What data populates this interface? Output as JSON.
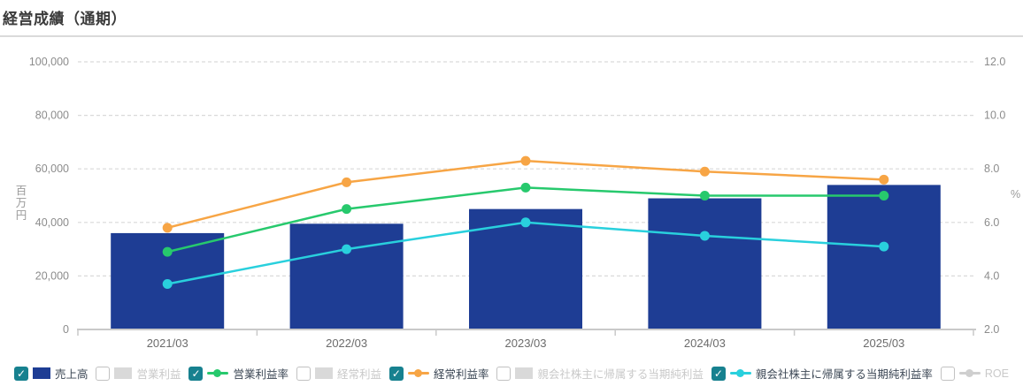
{
  "page": {
    "title": "経営成績（通期）"
  },
  "chart_data": {
    "type": "combo-bar-line",
    "categories": [
      "2021/03",
      "2022/03",
      "2023/03",
      "2024/03",
      "2025/03"
    ],
    "left_axis": {
      "unit": "百万円",
      "min": 0,
      "max": 100000,
      "ticks": [
        "0",
        "20,000",
        "40,000",
        "60,000",
        "80,000",
        "100,000"
      ]
    },
    "right_axis": {
      "unit": "%",
      "min": 2.0,
      "max": 12.0,
      "ticks": [
        "2.0",
        "4.0",
        "6.0",
        "8.0",
        "10.0",
        "12.0"
      ]
    },
    "grid": "dashed-horizontal",
    "series": [
      {
        "name": "売上高",
        "type": "bar",
        "axis": "left",
        "color": "#1e3d94",
        "values": [
          36000,
          39500,
          45000,
          49000,
          54000
        ]
      },
      {
        "name": "営業利益率",
        "type": "line",
        "axis": "right",
        "color": "#27c96d",
        "values": [
          4.9,
          6.5,
          7.3,
          7.0,
          7.0
        ]
      },
      {
        "name": "経常利益率",
        "type": "line",
        "axis": "right",
        "color": "#f7a545",
        "values": [
          5.8,
          7.5,
          8.3,
          7.9,
          7.6
        ]
      },
      {
        "name": "親会社株主に帰属する当期純利益率",
        "type": "line",
        "axis": "right",
        "color": "#29d0dd",
        "values": [
          3.7,
          5.0,
          6.0,
          5.5,
          5.1
        ]
      }
    ]
  },
  "legend": {
    "checked_color": "#17818f",
    "check_glyph": "✓",
    "unchecked_swatch_color": "#d9d9d9",
    "unchecked_line_color": "#cfcfcf",
    "items": [
      {
        "label": "売上高",
        "checked": true,
        "marker": "bar",
        "color": "#1e3d94"
      },
      {
        "label": "営業利益",
        "checked": false,
        "marker": "bar",
        "color": "#d9d9d9"
      },
      {
        "label": "営業利益率",
        "checked": true,
        "marker": "line",
        "color": "#27c96d"
      },
      {
        "label": "経常利益",
        "checked": false,
        "marker": "bar",
        "color": "#d9d9d9"
      },
      {
        "label": "経常利益率",
        "checked": true,
        "marker": "line",
        "color": "#f7a545"
      },
      {
        "label": "親会社株主に帰属する当期純利益",
        "checked": false,
        "marker": "bar",
        "color": "#d9d9d9"
      },
      {
        "label": "親会社株主に帰属する当期純利益率",
        "checked": true,
        "marker": "line",
        "color": "#29d0dd"
      },
      {
        "label": "ROE",
        "checked": false,
        "marker": "line",
        "color": "#cfcfcf"
      }
    ]
  }
}
